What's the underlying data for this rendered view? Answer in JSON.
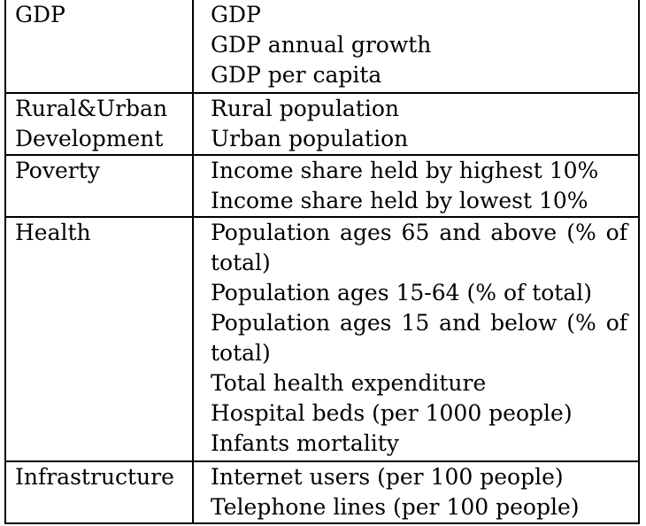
{
  "rows": [
    {
      "category": [
        "GDP"
      ],
      "items": [
        "GDP",
        "GDP annual growth",
        "GDP per capita"
      ]
    },
    {
      "category": [
        "Rural&Urban",
        "Development"
      ],
      "items": [
        "Rural population",
        "Urban population"
      ]
    },
    {
      "category": [
        "Poverty"
      ],
      "items": [
        "Income share held by highest 10%",
        "Income share held by lowest 10%"
      ]
    },
    {
      "category": [
        "Health"
      ],
      "items": [
        "Population ages 65 and above (% of",
        "total)",
        "Population ages 15-64 (% of total)",
        "Population ages 15 and below (% of",
        "total)",
        "Total health expenditure",
        "Hospital beds (per 1000 people)",
        "Infants mortality"
      ]
    },
    {
      "category": [
        "Infrastructure"
      ],
      "items": [
        "Internet users (per 100 people)",
        "Telephone lines (per 100 people)"
      ]
    }
  ]
}
